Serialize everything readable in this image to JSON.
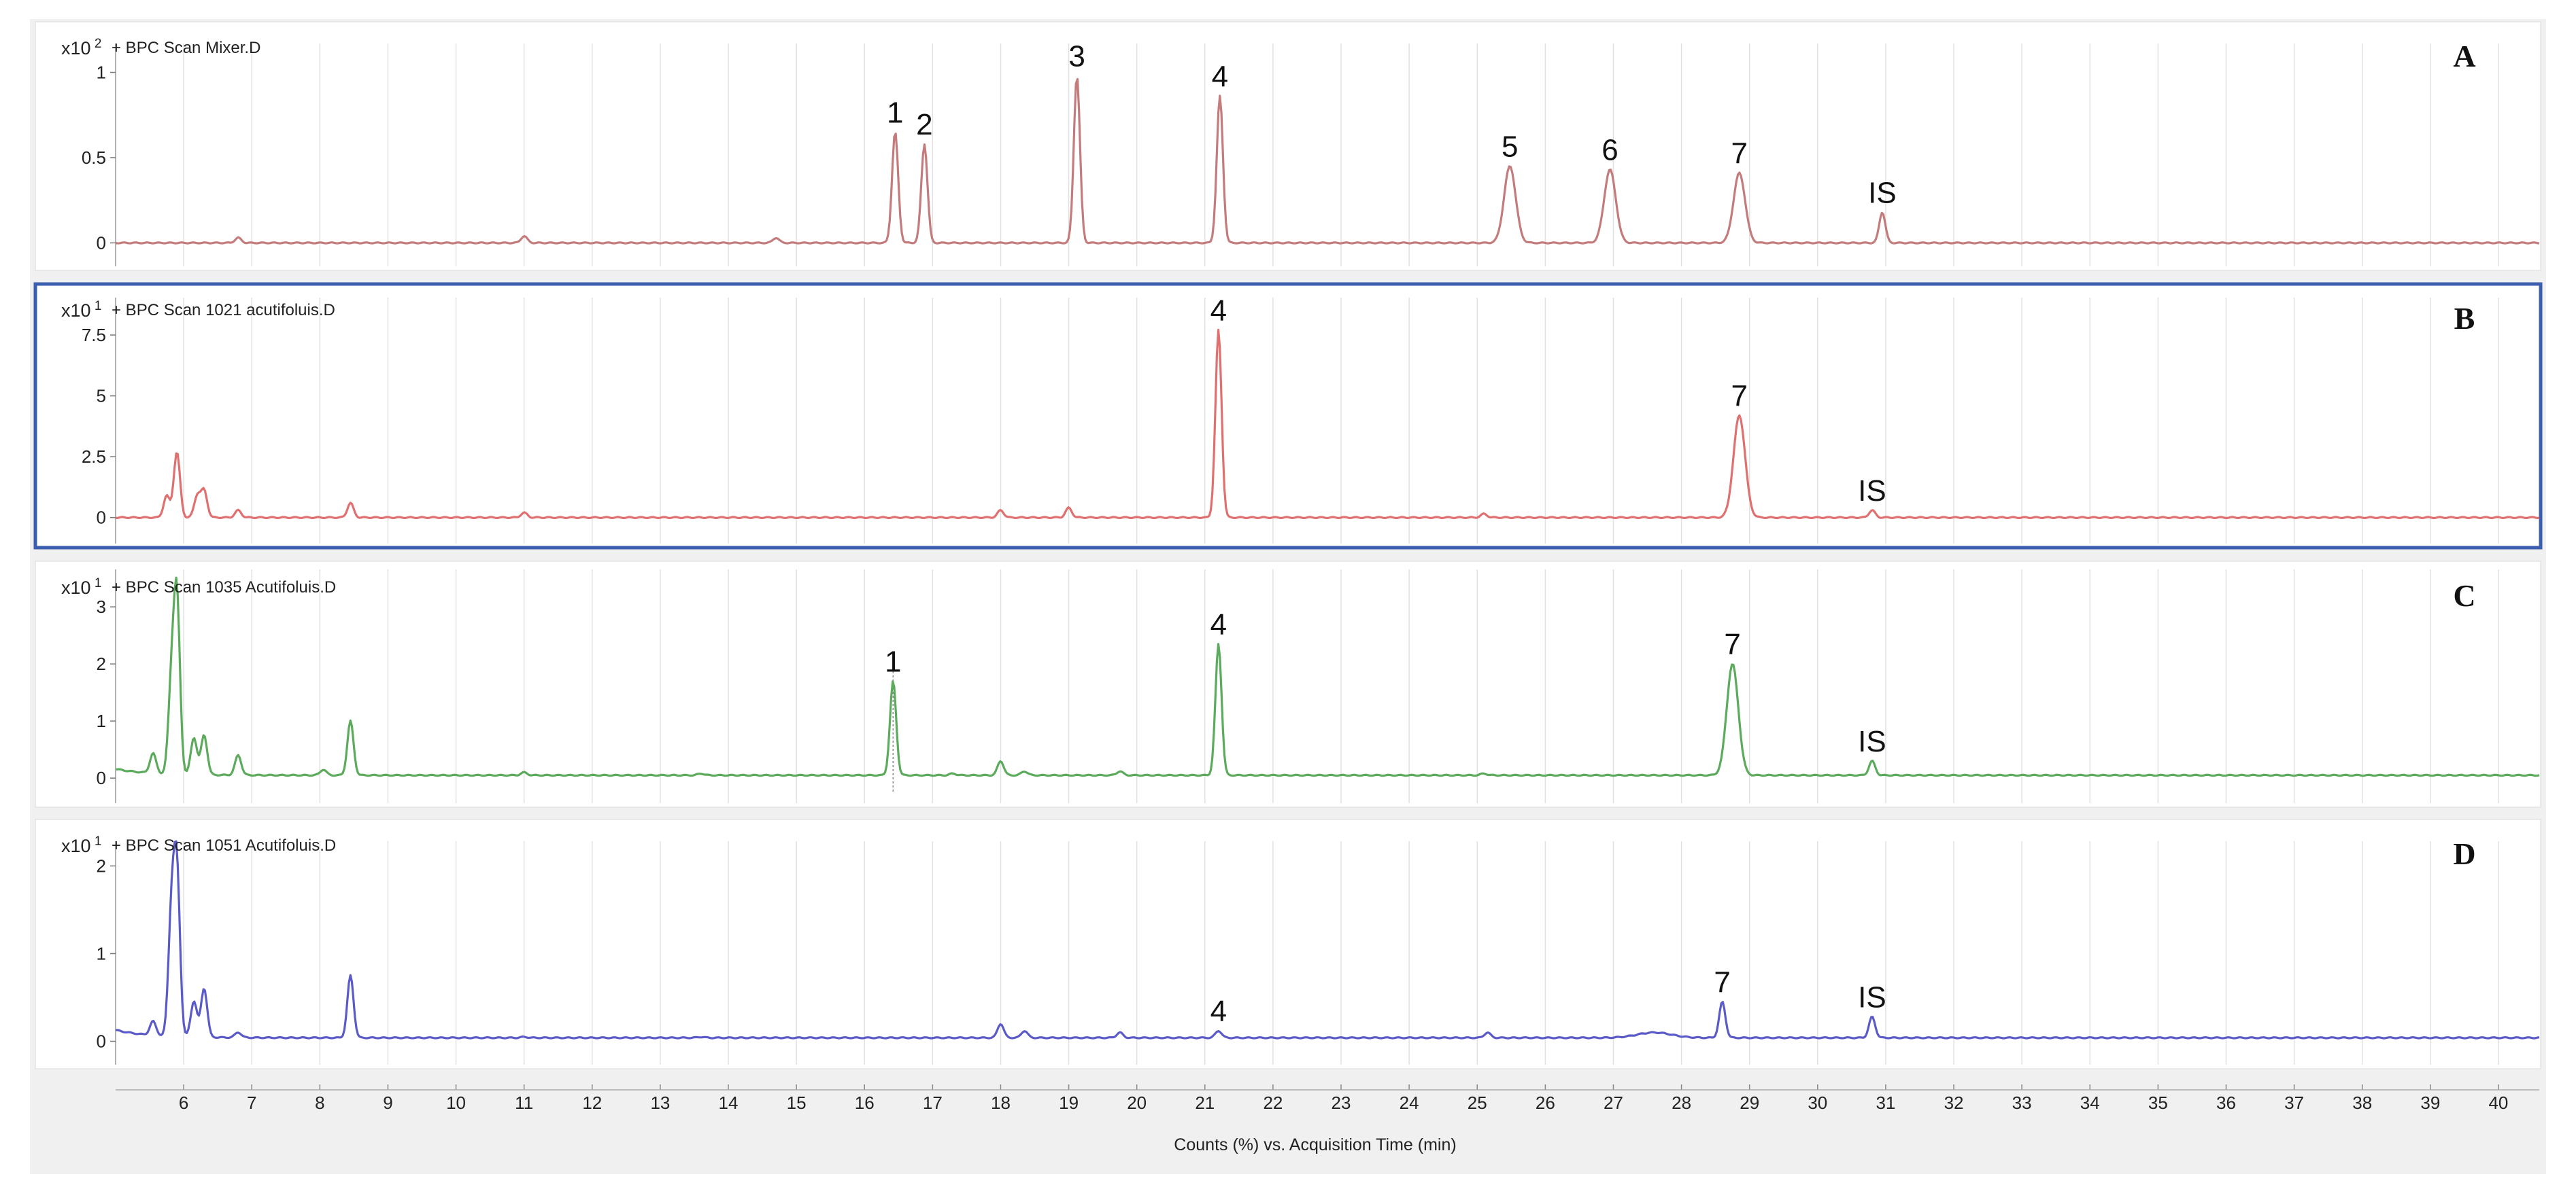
{
  "chart_data": {
    "type": "line",
    "xlabel": "Counts (%) vs. Acquisition Time (min)",
    "xlim": [
      5.0,
      40.6
    ],
    "x_ticks": [
      6,
      7,
      8,
      9,
      10,
      11,
      12,
      13,
      14,
      15,
      16,
      17,
      18,
      19,
      20,
      21,
      22,
      23,
      24,
      25,
      26,
      27,
      28,
      29,
      30,
      31,
      32,
      33,
      34,
      35,
      36,
      37,
      38,
      39,
      40
    ],
    "grid": true,
    "panels": [
      {
        "panel_label": "A",
        "trace_title": "+ BPC Scan Mixer.D",
        "scale_base": "x10",
        "scale_exp": "2",
        "color": "#c47b7b",
        "highlighted": false,
        "ylim": [
          -0.05,
          1.05
        ],
        "y_ticks": [
          {
            "v": 0,
            "label": "0"
          },
          {
            "v": 0.5,
            "label": "0.5"
          },
          {
            "v": 1,
            "label": "1"
          }
        ],
        "baseline": 0.0,
        "peaks": [
          {
            "x": 16.45,
            "y": 0.65,
            "label": "1"
          },
          {
            "x": 16.88,
            "y": 0.58,
            "label": "2"
          },
          {
            "x": 19.12,
            "y": 0.98,
            "label": "3"
          },
          {
            "x": 21.22,
            "y": 0.86,
            "label": "4"
          },
          {
            "x": 25.48,
            "y": 0.45,
            "label": "5"
          },
          {
            "x": 26.95,
            "y": 0.43,
            "label": "6"
          },
          {
            "x": 28.85,
            "y": 0.41,
            "label": "7"
          },
          {
            "x": 30.95,
            "y": 0.18,
            "label": "IS"
          },
          {
            "x": 6.8,
            "y": 0.03,
            "label": ""
          },
          {
            "x": 11.0,
            "y": 0.04,
            "label": ""
          },
          {
            "x": 14.7,
            "y": 0.03,
            "label": ""
          }
        ]
      },
      {
        "panel_label": "B",
        "trace_title": "+ BPC Scan 1021 acutifoluis.D",
        "scale_base": "x10",
        "scale_exp": "1",
        "color": "#e07070",
        "highlighted": true,
        "ylim": [
          -0.4,
          8.2
        ],
        "y_ticks": [
          {
            "v": 0,
            "label": "0"
          },
          {
            "v": 2.5,
            "label": "2.5"
          },
          {
            "v": 5,
            "label": "5"
          },
          {
            "v": 7.5,
            "label": "7.5"
          }
        ],
        "baseline": 0.0,
        "peaks": [
          {
            "x": 21.2,
            "y": 7.7,
            "label": "4"
          },
          {
            "x": 28.85,
            "y": 4.2,
            "label": "7"
          },
          {
            "x": 30.8,
            "y": 0.3,
            "label": "IS"
          },
          {
            "x": 5.75,
            "y": 0.9,
            "label": ""
          },
          {
            "x": 5.9,
            "y": 2.7,
            "label": ""
          },
          {
            "x": 6.2,
            "y": 0.9,
            "label": ""
          },
          {
            "x": 6.3,
            "y": 1.1,
            "label": ""
          },
          {
            "x": 6.8,
            "y": 0.3,
            "label": ""
          },
          {
            "x": 8.45,
            "y": 0.6,
            "label": ""
          },
          {
            "x": 11.0,
            "y": 0.2,
            "label": ""
          },
          {
            "x": 18.0,
            "y": 0.3,
            "label": ""
          },
          {
            "x": 19.0,
            "y": 0.4,
            "label": ""
          },
          {
            "x": 25.1,
            "y": 0.15,
            "label": ""
          }
        ]
      },
      {
        "panel_label": "C",
        "trace_title": "+ BPC Scan 1035 Acutifoluis.D",
        "scale_base": "x10",
        "scale_exp": "1",
        "color": "#5caa5c",
        "highlighted": false,
        "ylim": [
          -0.2,
          3.3
        ],
        "y_ticks": [
          {
            "v": 0,
            "label": "0"
          },
          {
            "v": 1,
            "label": "1"
          },
          {
            "v": 2,
            "label": "2"
          },
          {
            "v": 3,
            "label": "3"
          }
        ],
        "baseline": 0.05,
        "peaks": [
          {
            "x": 16.42,
            "y": 1.7,
            "label": "1"
          },
          {
            "x": 21.2,
            "y": 2.35,
            "label": "4"
          },
          {
            "x": 28.75,
            "y": 2.0,
            "label": "7"
          },
          {
            "x": 30.8,
            "y": 0.3,
            "label": "IS"
          },
          {
            "x": 5.55,
            "y": 0.4,
            "label": ""
          },
          {
            "x": 5.82,
            "y": 1.6,
            "label": ""
          },
          {
            "x": 5.9,
            "y": 3.1,
            "label": ""
          },
          {
            "x": 6.15,
            "y": 0.7,
            "label": ""
          },
          {
            "x": 6.3,
            "y": 0.75,
            "label": ""
          },
          {
            "x": 6.8,
            "y": 0.4,
            "label": ""
          },
          {
            "x": 8.05,
            "y": 0.15,
            "label": ""
          },
          {
            "x": 8.45,
            "y": 1.0,
            "label": ""
          },
          {
            "x": 11.0,
            "y": 0.1,
            "label": ""
          },
          {
            "x": 13.6,
            "y": 0.08,
            "label": ""
          },
          {
            "x": 17.3,
            "y": 0.08,
            "label": ""
          },
          {
            "x": 18.0,
            "y": 0.3,
            "label": ""
          },
          {
            "x": 18.35,
            "y": 0.12,
            "label": ""
          },
          {
            "x": 19.75,
            "y": 0.12,
            "label": ""
          },
          {
            "x": 25.1,
            "y": 0.08,
            "label": ""
          }
        ]
      },
      {
        "panel_label": "D",
        "trace_title": "+ BPC Scan 1051 Acutifoluis.D",
        "scale_base": "x10",
        "scale_exp": "1",
        "color": "#5a5ac8",
        "highlighted": false,
        "ylim": [
          -0.12,
          2.05
        ],
        "y_ticks": [
          {
            "v": 0,
            "label": "0"
          },
          {
            "v": 1,
            "label": "1"
          },
          {
            "v": 2,
            "label": "2"
          }
        ],
        "baseline": 0.04,
        "peaks": [
          {
            "x": 21.2,
            "y": 0.12,
            "label": "4"
          },
          {
            "x": 28.6,
            "y": 0.45,
            "label": "7"
          },
          {
            "x": 30.8,
            "y": 0.28,
            "label": "IS"
          },
          {
            "x": 5.55,
            "y": 0.2,
            "label": ""
          },
          {
            "x": 5.82,
            "y": 1.4,
            "label": ""
          },
          {
            "x": 5.9,
            "y": 1.9,
            "label": ""
          },
          {
            "x": 6.15,
            "y": 0.45,
            "label": ""
          },
          {
            "x": 6.3,
            "y": 0.6,
            "label": ""
          },
          {
            "x": 6.8,
            "y": 0.1,
            "label": ""
          },
          {
            "x": 8.45,
            "y": 0.75,
            "label": ""
          },
          {
            "x": 11.0,
            "y": 0.05,
            "label": ""
          },
          {
            "x": 13.6,
            "y": 0.05,
            "label": ""
          },
          {
            "x": 18.0,
            "y": 0.2,
            "label": ""
          },
          {
            "x": 18.35,
            "y": 0.12,
            "label": ""
          },
          {
            "x": 19.75,
            "y": 0.1,
            "label": ""
          },
          {
            "x": 25.15,
            "y": 0.1,
            "label": ""
          },
          {
            "x": 27.6,
            "y": 0.1,
            "label": ""
          }
        ]
      }
    ]
  }
}
